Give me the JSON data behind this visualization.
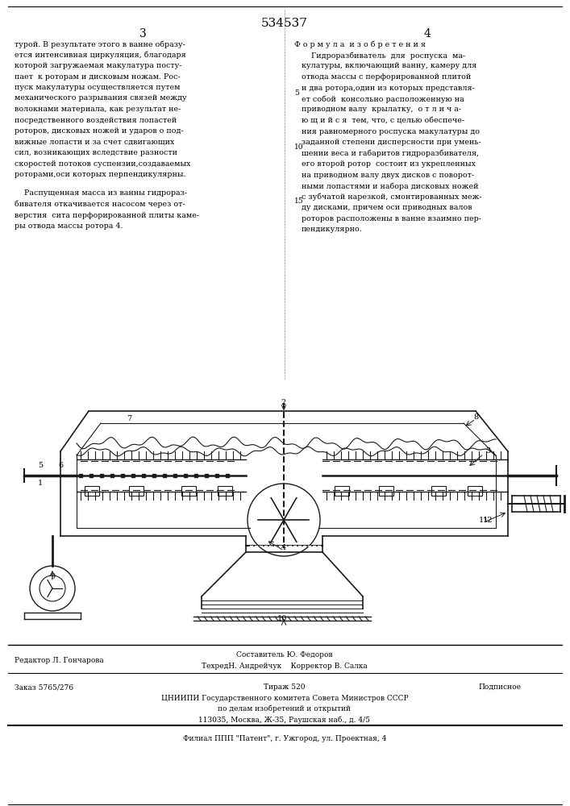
{
  "patent_number": "534537",
  "page_left": "3",
  "page_right": "4",
  "bg_color": "#ffffff",
  "text_color": "#000000",
  "left_column_text": [
    "турой. В результате этого в ванне образу-",
    "ется интенсивная циркуляция, благодаря",
    "которой загружаемая макулатура посту-",
    "пает  к роторам и дисковым ножам. Рос-",
    "пуск макулатуры осуществляется путем",
    "механического разрывания связей между",
    "волокнами материала, как результат не-",
    "посредственного воздействия лопастей",
    "роторов, дисковых ножей и ударов о под-",
    "вижные лопасти и за счет сдвигающих",
    "сил, возникающих вследствие разности",
    "скоростей потоков суспензии,создаваемых",
    "роторами,оси которых перпендикулярны."
  ],
  "left_column_text2": [
    "    Распущенная масса из ванны гидрораз-",
    "бивателя откачивается насосом через от-",
    "верстия  сита перфорированной плиты каме-",
    "ры отвода массы ротора 4."
  ],
  "right_column_title": "Ф о р м у л а  и з о б р е т е н и я",
  "right_column_text": [
    "    Гидроразбиватель  для  роспуска  ма-",
    "кулатуры, включающий ванну, камеру для",
    "отвода массы с перфорированной плитой",
    "и два ротора,один из которых представля-",
    "ет собой  консольно расположенную на",
    "приводном валу  крылатку,  о т л и ч а-",
    "ю щ и й с я  тем, что, с целью обеспече-",
    "ния равномерного роспуска макулатуры до",
    "заданной степени дисперсности при умень-",
    "шении веса и габаритов гидроразбивателя,",
    "его второй ротор  состоит из укрепленных",
    "на приводном валу двух дисков с поворот-",
    "ными лопастями и набора дисковых ножей",
    "с зубчатой нарезкой, смонтированных меж-",
    "ду дисками, причем оси приводных валов",
    "роторов расположены в ванне взаимно пер-",
    "пендикулярно."
  ],
  "right_col_numbers": [
    "5",
    "10",
    "15"
  ],
  "bottom_text_left": "Редактор Л. Гончарова",
  "bottom_text_center1": "Составитель Ю. Федоров",
  "bottom_text_center2": "ТехредН. Андрейчук    Корректор В. Салка",
  "bottom_text_zakas": "Заказ 5765/276",
  "bottom_text_tirazh": "Тираж 520",
  "bottom_text_podp": "Подписное",
  "bottom_text_inst": "ЦНИИПИ Государственного комитета Совета Министров СССР",
  "bottom_text_inst2": "по делам изобретений и открытий",
  "bottom_text_addr": "113035, Москва, Ж-35, Раушская наб., д. 4/5",
  "bottom_text_filial": "Филиал ППП \"Патент\", г. Ужгород, ул. Проектная, 4",
  "line_color": "#000000",
  "draw_color": "#1a1a1a"
}
